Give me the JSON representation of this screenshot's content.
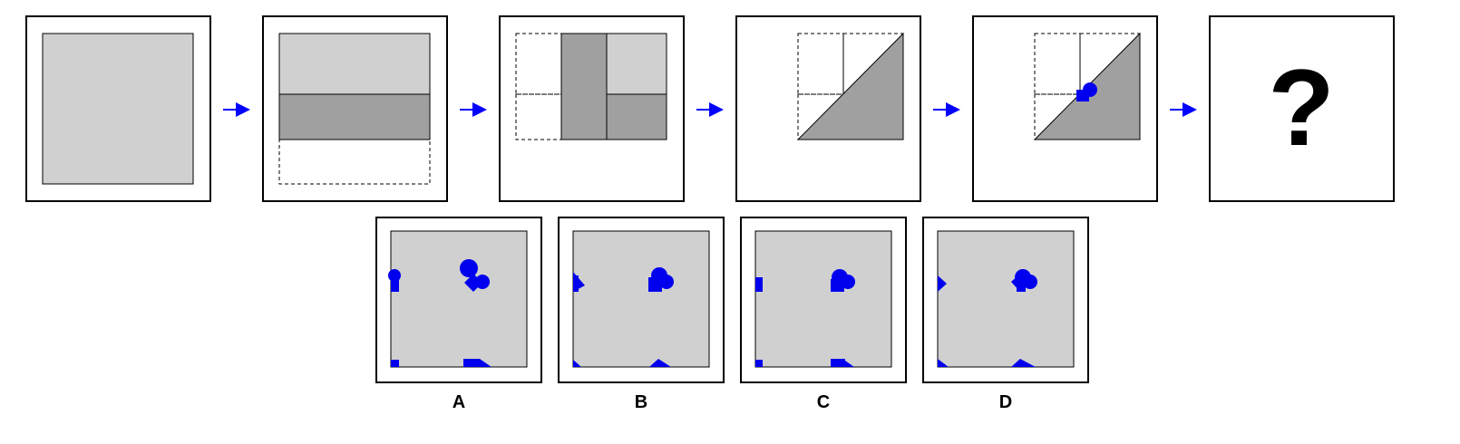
{
  "puzzle": {
    "question_mark": "?",
    "options": [
      {
        "label": "A"
      },
      {
        "label": "B"
      },
      {
        "label": "C"
      },
      {
        "label": "D"
      }
    ]
  },
  "colors": {
    "paper": "#d0d0d0",
    "folded_layer": "#a0a0a0",
    "hole": "#0000ee",
    "arrow": "#0000ff",
    "frame": "#000000",
    "background": "#ffffff"
  },
  "icons": {
    "step_arrow": "right-arrow-icon",
    "hole_mark": "hole-punch-icon"
  }
}
